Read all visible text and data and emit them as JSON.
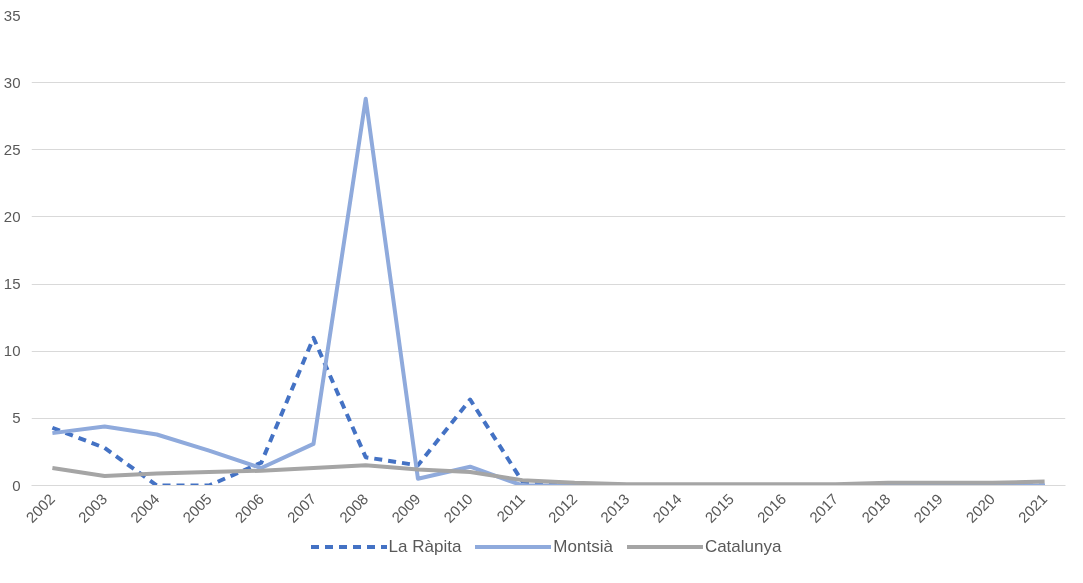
{
  "chart_data": {
    "type": "line",
    "categories": [
      "2002",
      "2003",
      "2004",
      "2005",
      "2006",
      "2007",
      "2008",
      "2009",
      "2010",
      "2011",
      "2012",
      "2013",
      "2014",
      "2015",
      "2016",
      "2017",
      "2018",
      "2019",
      "2020",
      "2021"
    ],
    "series": [
      {
        "name": "La Ràpita",
        "color": "#4472c4",
        "line_style": "dashed",
        "values": [
          4.3,
          2.8,
          0,
          0,
          1.7,
          11.0,
          2.1,
          1.5,
          6.4,
          0.3,
          0,
          0,
          0,
          0,
          0,
          0,
          0,
          0,
          0,
          0
        ]
      },
      {
        "name": "Montsià",
        "color": "#8faadc",
        "line_style": "solid",
        "values": [
          3.9,
          4.4,
          3.8,
          2.6,
          1.3,
          3.1,
          28.8,
          0.5,
          1.4,
          0,
          0,
          0,
          0,
          0,
          0,
          0,
          0,
          0,
          0,
          0
        ]
      },
      {
        "name": "Catalunya",
        "color": "#a5a5a5",
        "line_style": "solid",
        "values": [
          1.3,
          0.7,
          0.9,
          1.0,
          1.1,
          1.3,
          1.5,
          1.2,
          1.0,
          0.4,
          0.2,
          0.1,
          0.1,
          0.1,
          0.1,
          0.1,
          0.2,
          0.2,
          0.2,
          0.3
        ]
      }
    ],
    "ylim": [
      0,
      35
    ],
    "yticks": [
      0,
      5,
      10,
      15,
      20,
      25,
      30,
      35
    ],
    "grid": "y",
    "legend": "bottom",
    "marker": "none"
  }
}
